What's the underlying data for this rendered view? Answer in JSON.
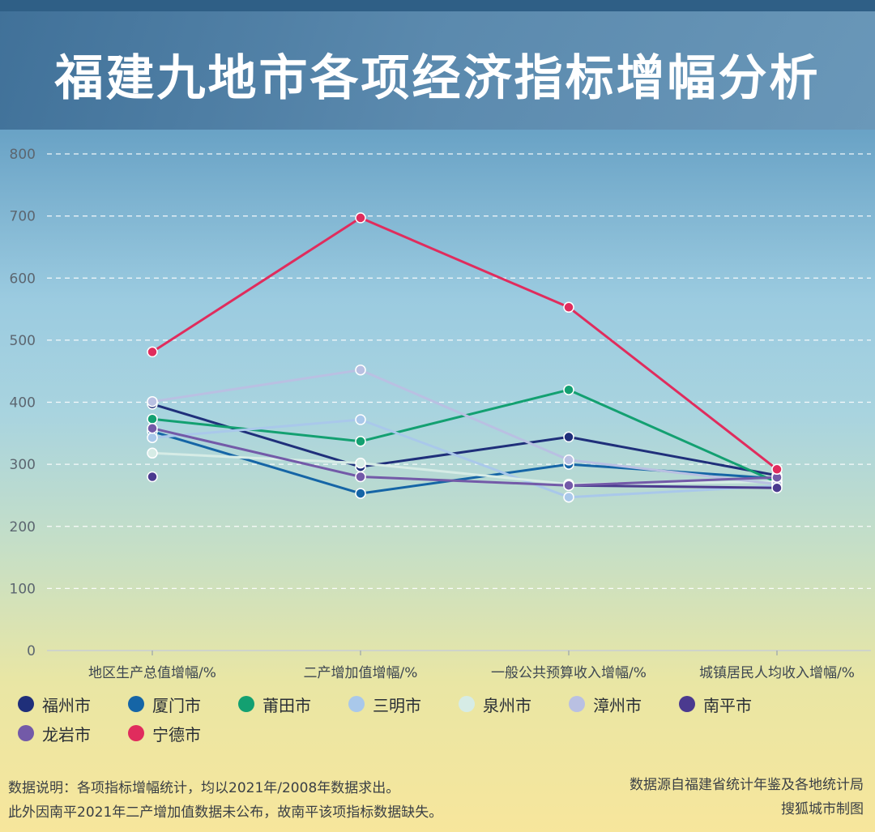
{
  "title": "福建九地市各项经济指标增幅分析",
  "chart_data": {
    "type": "line",
    "title": "福建九地市各项经济指标增幅分析",
    "categories": [
      "地区生产总值增幅/%",
      "二产增加值增幅/%",
      "一般公共预算收入增幅/%",
      "城镇居民人均收入增幅/%"
    ],
    "ylim": [
      0,
      800
    ],
    "yticks": [
      0,
      100,
      200,
      300,
      400,
      500,
      600,
      700,
      800
    ],
    "grid": true,
    "legend_position": "bottom",
    "series": [
      {
        "name": "福州市",
        "color": "#1f2f7a",
        "values": [
          397,
          296,
          344,
          282
        ]
      },
      {
        "name": "厦门市",
        "color": "#1565a6",
        "values": [
          353,
          253,
          300,
          277
        ]
      },
      {
        "name": "莆田市",
        "color": "#13a071",
        "values": [
          373,
          337,
          420,
          271
        ]
      },
      {
        "name": "三明市",
        "color": "#a9c8ea",
        "values": [
          343,
          372,
          247,
          265
        ]
      },
      {
        "name": "泉州市",
        "color": "#d6ece6",
        "values": [
          318,
          302,
          268,
          272
        ]
      },
      {
        "name": "漳州市",
        "color": "#b9c0e2",
        "values": [
          401,
          452,
          307,
          268
        ]
      },
      {
        "name": "南平市",
        "color": "#4b3a8f",
        "values": [
          280,
          null,
          266,
          262
        ]
      },
      {
        "name": "龙岩市",
        "color": "#735aa8",
        "values": [
          358,
          280,
          266,
          279
        ]
      },
      {
        "name": "宁德市",
        "color": "#e02c5d",
        "values": [
          481,
          697,
          553,
          292
        ]
      }
    ]
  },
  "notes": {
    "left_line1": "数据说明：各项指标增幅统计，均以2021年/2008年数据求出。",
    "left_line2": "此外因南平2021年二产增加值数据未公布，故南平该项指标数据缺失。",
    "right_line1": "数据源自福建省统计年鉴及各地统计局",
    "right_line2": "搜狐城市制图"
  }
}
